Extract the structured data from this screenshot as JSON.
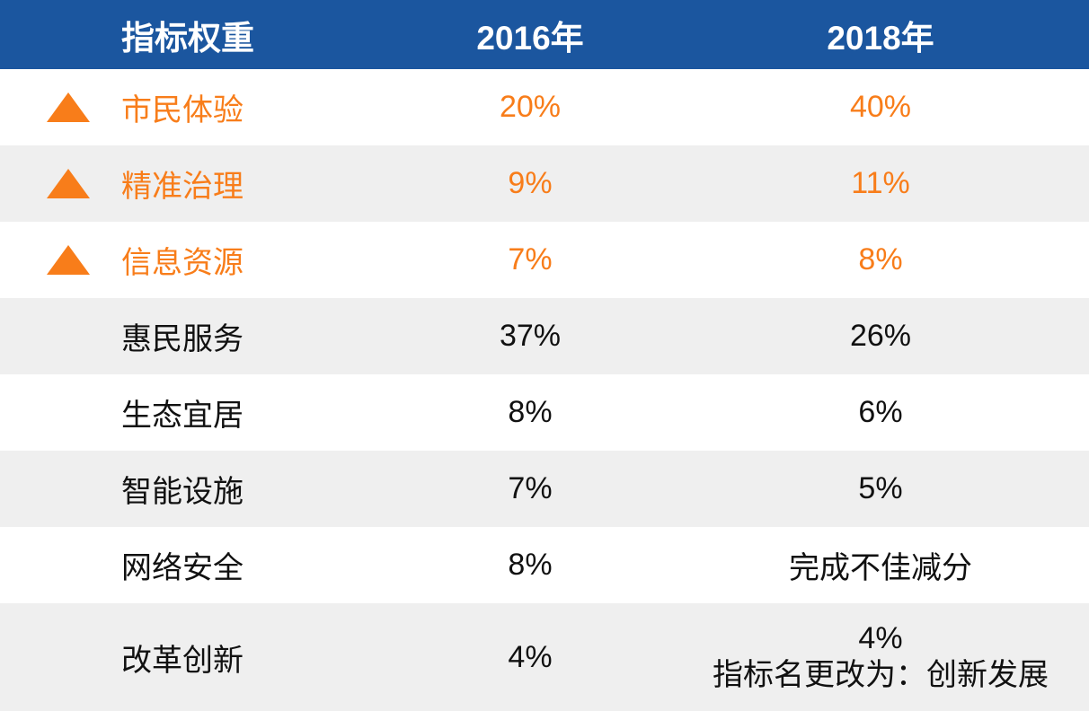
{
  "colors": {
    "header_bg": "#1B569F",
    "header_text": "#FFFFFF",
    "accent_orange": "#F87D1A",
    "row_alt_bg": "#EFEFEF",
    "row_bg": "#FFFFFF",
    "text_dark": "#111111"
  },
  "icons": {
    "increase_marker": "triangle-up"
  },
  "header": {
    "col_label": "指标权重",
    "col_2016": "2016年",
    "col_2018": "2018年"
  },
  "rows": [
    {
      "label": "市民体验",
      "v2016": "20%",
      "v2018": "40%"
    },
    {
      "label": "精准治理",
      "v2016": "9%",
      "v2018": "11%"
    },
    {
      "label": "信息资源",
      "v2016": "7%",
      "v2018": "8%"
    },
    {
      "label": "惠民服务",
      "v2016": "37%",
      "v2018": "26%"
    },
    {
      "label": "生态宜居",
      "v2016": "8%",
      "v2018": "6%"
    },
    {
      "label": "智能设施",
      "v2016": "7%",
      "v2018": "5%"
    },
    {
      "label": "网络安全",
      "v2016": "8%",
      "v2018": "完成不佳减分"
    },
    {
      "label": "改革创新",
      "v2016": "4%",
      "v2018": "4%",
      "v2018_note": "指标名更改为：创新发展"
    }
  ],
  "chart_data": {
    "type": "table",
    "title": "指标权重",
    "columns": [
      "指标权重",
      "2016年",
      "2018年"
    ],
    "rows": [
      [
        "市民体验",
        "20%",
        "40%"
      ],
      [
        "精准治理",
        "9%",
        "11%"
      ],
      [
        "信息资源",
        "7%",
        "8%"
      ],
      [
        "惠民服务",
        "37%",
        "26%"
      ],
      [
        "生态宜居",
        "8%",
        "6%"
      ],
      [
        "智能设施",
        "7%",
        "5%"
      ],
      [
        "网络安全",
        "8%",
        "完成不佳减分"
      ],
      [
        "改革创新",
        "4%",
        "4% 指标名更改为：创新发展"
      ]
    ],
    "highlighted_rows": [
      "市民体验",
      "精准治理",
      "信息资源"
    ],
    "highlight_meaning_marker": "orange triangle-up (weight increased)",
    "layout": {
      "header_bg": "#1B569F",
      "alternating_row_bg": [
        "#FFFFFF",
        "#EFEFEF"
      ],
      "highlight_color": "#F87D1A"
    }
  }
}
